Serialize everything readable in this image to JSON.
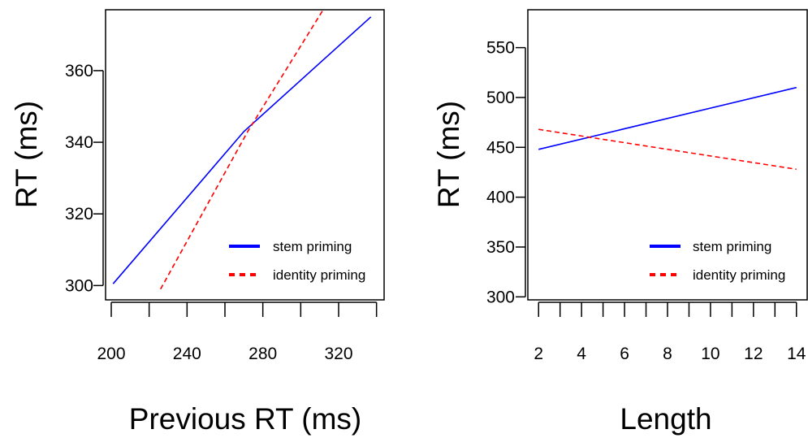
{
  "chart_data": [
    {
      "type": "line",
      "xlabel": "Previous RT (ms)",
      "ylabel": "RT (ms)",
      "xlim": [
        197,
        344
      ],
      "ylim": [
        296,
        377
      ],
      "x_ticks": [
        200,
        220,
        240,
        260,
        280,
        300,
        320,
        340
      ],
      "x_tick_labels": [
        "200",
        "240",
        "280",
        "320"
      ],
      "x_tick_label_values": [
        200,
        240,
        280,
        320
      ],
      "y_ticks": [
        300,
        320,
        340,
        360
      ],
      "y_tick_labels": [
        "300",
        "320",
        "340",
        "360"
      ],
      "series": [
        {
          "name": "stem priming",
          "color": "#0000ff",
          "dash": "solid",
          "points": [
            [
              201,
              300.5
            ],
            [
              270,
              343
            ],
            [
              337,
              375
            ]
          ]
        },
        {
          "name": "identity priming",
          "color": "#ff0000",
          "dash": "dashed",
          "points": [
            [
              226,
              299
            ],
            [
              272,
              343
            ],
            [
              313,
              378
            ]
          ]
        }
      ],
      "legend": {
        "position": "bottom-right",
        "entries": [
          "stem priming",
          "identity priming"
        ]
      },
      "grid": false
    },
    {
      "type": "line",
      "xlabel": "Length",
      "ylabel": "RT (ms)",
      "xlim": [
        1.5,
        14.5
      ],
      "ylim": [
        297,
        588
      ],
      "x_ticks": [
        2,
        3,
        4,
        5,
        6,
        7,
        8,
        9,
        10,
        11,
        12,
        13,
        14
      ],
      "x_tick_labels": [
        "2",
        "4",
        "6",
        "8",
        "10",
        "12",
        "14"
      ],
      "x_tick_label_values": [
        2,
        4,
        6,
        8,
        10,
        12,
        14
      ],
      "y_ticks": [
        300,
        350,
        400,
        450,
        500,
        550
      ],
      "y_tick_labels": [
        "300",
        "350",
        "400",
        "450",
        "500",
        "550"
      ],
      "series": [
        {
          "name": "stem priming",
          "color": "#0000ff",
          "dash": "solid",
          "points": [
            [
              2,
              448
            ],
            [
              14,
              510
            ]
          ]
        },
        {
          "name": "identity priming",
          "color": "#ff0000",
          "dash": "dashed",
          "points": [
            [
              2,
              468
            ],
            [
              14,
              428
            ]
          ]
        }
      ],
      "legend": {
        "position": "bottom-right",
        "entries": [
          "stem priming",
          "identity priming"
        ]
      },
      "grid": false
    }
  ]
}
